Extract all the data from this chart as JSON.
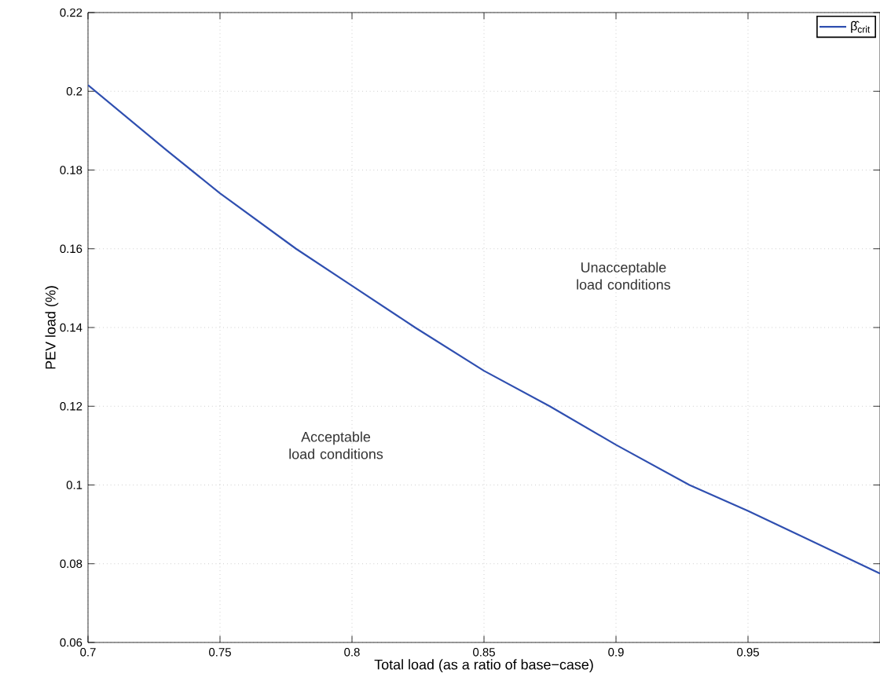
{
  "chart_data": {
    "type": "line",
    "xlabel": "Total load (as a ratio of base−case)",
    "ylabel": "PEV load (%)",
    "x": [
      0.7,
      0.7298,
      0.75,
      0.7788,
      0.8,
      0.8239,
      0.85,
      0.8749,
      0.9,
      0.9278,
      0.95,
      0.969,
      1.0
    ],
    "series": [
      {
        "name": "β̂$_{crit}$",
        "color": "#2f4fb0",
        "values": [
          0.2016,
          0.185,
          0.1741,
          0.16,
          0.1506,
          0.14,
          0.129,
          0.12,
          0.1102,
          0.1,
          0.0934,
          0.0874,
          0.0775
        ]
      }
    ],
    "xlim": [
      0.7,
      1.0
    ],
    "xticks": [
      0.7,
      0.75,
      0.8,
      0.85,
      0.9,
      0.95
    ],
    "ylim": [
      0.06,
      0.22
    ],
    "yticks": [
      0.06,
      0.08,
      0.1,
      0.12,
      0.14,
      0.16,
      0.18,
      0.2,
      0.22
    ],
    "annotations": [
      "Unacceptable load conditions",
      "Acceptable load conditions"
    ],
    "grid": true,
    "legend": "top right",
    "marker": "none",
    "line_style": "solid"
  }
}
